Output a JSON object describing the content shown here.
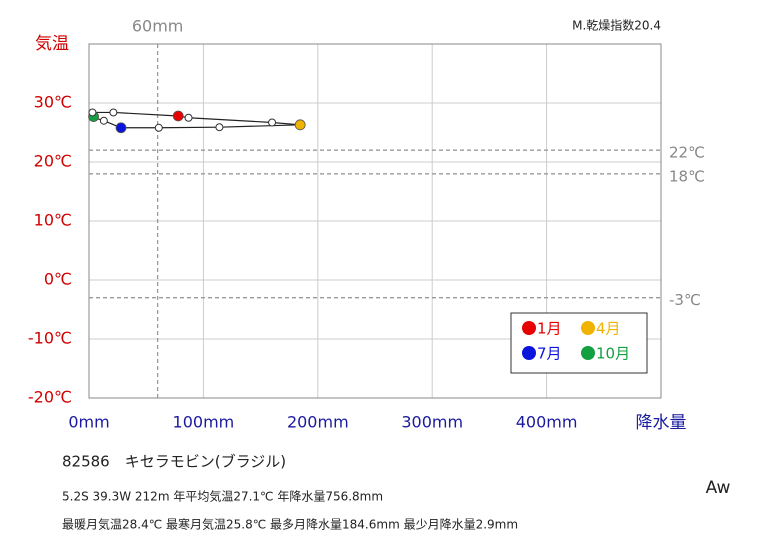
{
  "chart_data": {
    "type": "line",
    "y_axis_title": "気温",
    "x_axis_title": "降水量",
    "index_label": "M.乾燥指数20.4",
    "x": [
      78,
      87,
      160,
      184.6,
      114,
      61,
      28,
      13,
      2.9,
      4,
      3,
      21.3
    ],
    "values": [
      27.8,
      27.5,
      26.7,
      26.3,
      25.9,
      25.8,
      25.8,
      27.0,
      27.6,
      27.7,
      28.4,
      28.4
    ],
    "marker_colors": [
      "#e60000",
      "#ffffff",
      "#ffffff",
      "#f0b400",
      "#ffffff",
      "#ffffff",
      "#0a14dc",
      "#ffffff",
      "#ffffff",
      "#14a040",
      "#ffffff",
      "#ffffff"
    ],
    "line_color": "#222222",
    "xlim": [
      0,
      500
    ],
    "ylim": [
      -20,
      40
    ],
    "xticks": [
      {
        "value": 0,
        "label": "0mm"
      },
      {
        "value": 100,
        "label": "100mm"
      },
      {
        "value": 200,
        "label": "200mm"
      },
      {
        "value": 300,
        "label": "300mm"
      },
      {
        "value": 400,
        "label": "400mm"
      },
      500
    ],
    "yticks": [
      {
        "value": -20,
        "label": "-20℃"
      },
      {
        "value": -10,
        "label": "-10℃"
      },
      {
        "value": 0,
        "label": "0℃"
      },
      {
        "value": 10,
        "label": "10℃"
      },
      {
        "value": 20,
        "label": "20℃"
      },
      {
        "value": 30,
        "label": "30℃"
      },
      40
    ],
    "hlines": [
      {
        "value": 22,
        "label": "22℃"
      },
      {
        "value": 18,
        "label": "18℃"
      },
      {
        "value": -3,
        "label": "-3℃"
      }
    ],
    "vlines": [
      {
        "value": 60,
        "label": "60mm"
      }
    ],
    "grid": true,
    "legend": [
      {
        "name": "1月",
        "color": "#e60000"
      },
      {
        "name": "4月",
        "color": "#f0b400"
      },
      {
        "name": "7月",
        "color": "#0a14dc"
      },
      {
        "name": "10月",
        "color": "#14a040"
      }
    ],
    "station": "82586　キセラモビン(ブラジル)",
    "info_line1": "5.2S  39.3W 212m  年平均気温27.1℃ 年降水量756.8mm",
    "info_line2": "最暖月気温28.4℃ 最寒月気温25.8℃ 最多月降水量184.6mm 最少月降水量2.9mm",
    "climate": "Aw"
  }
}
